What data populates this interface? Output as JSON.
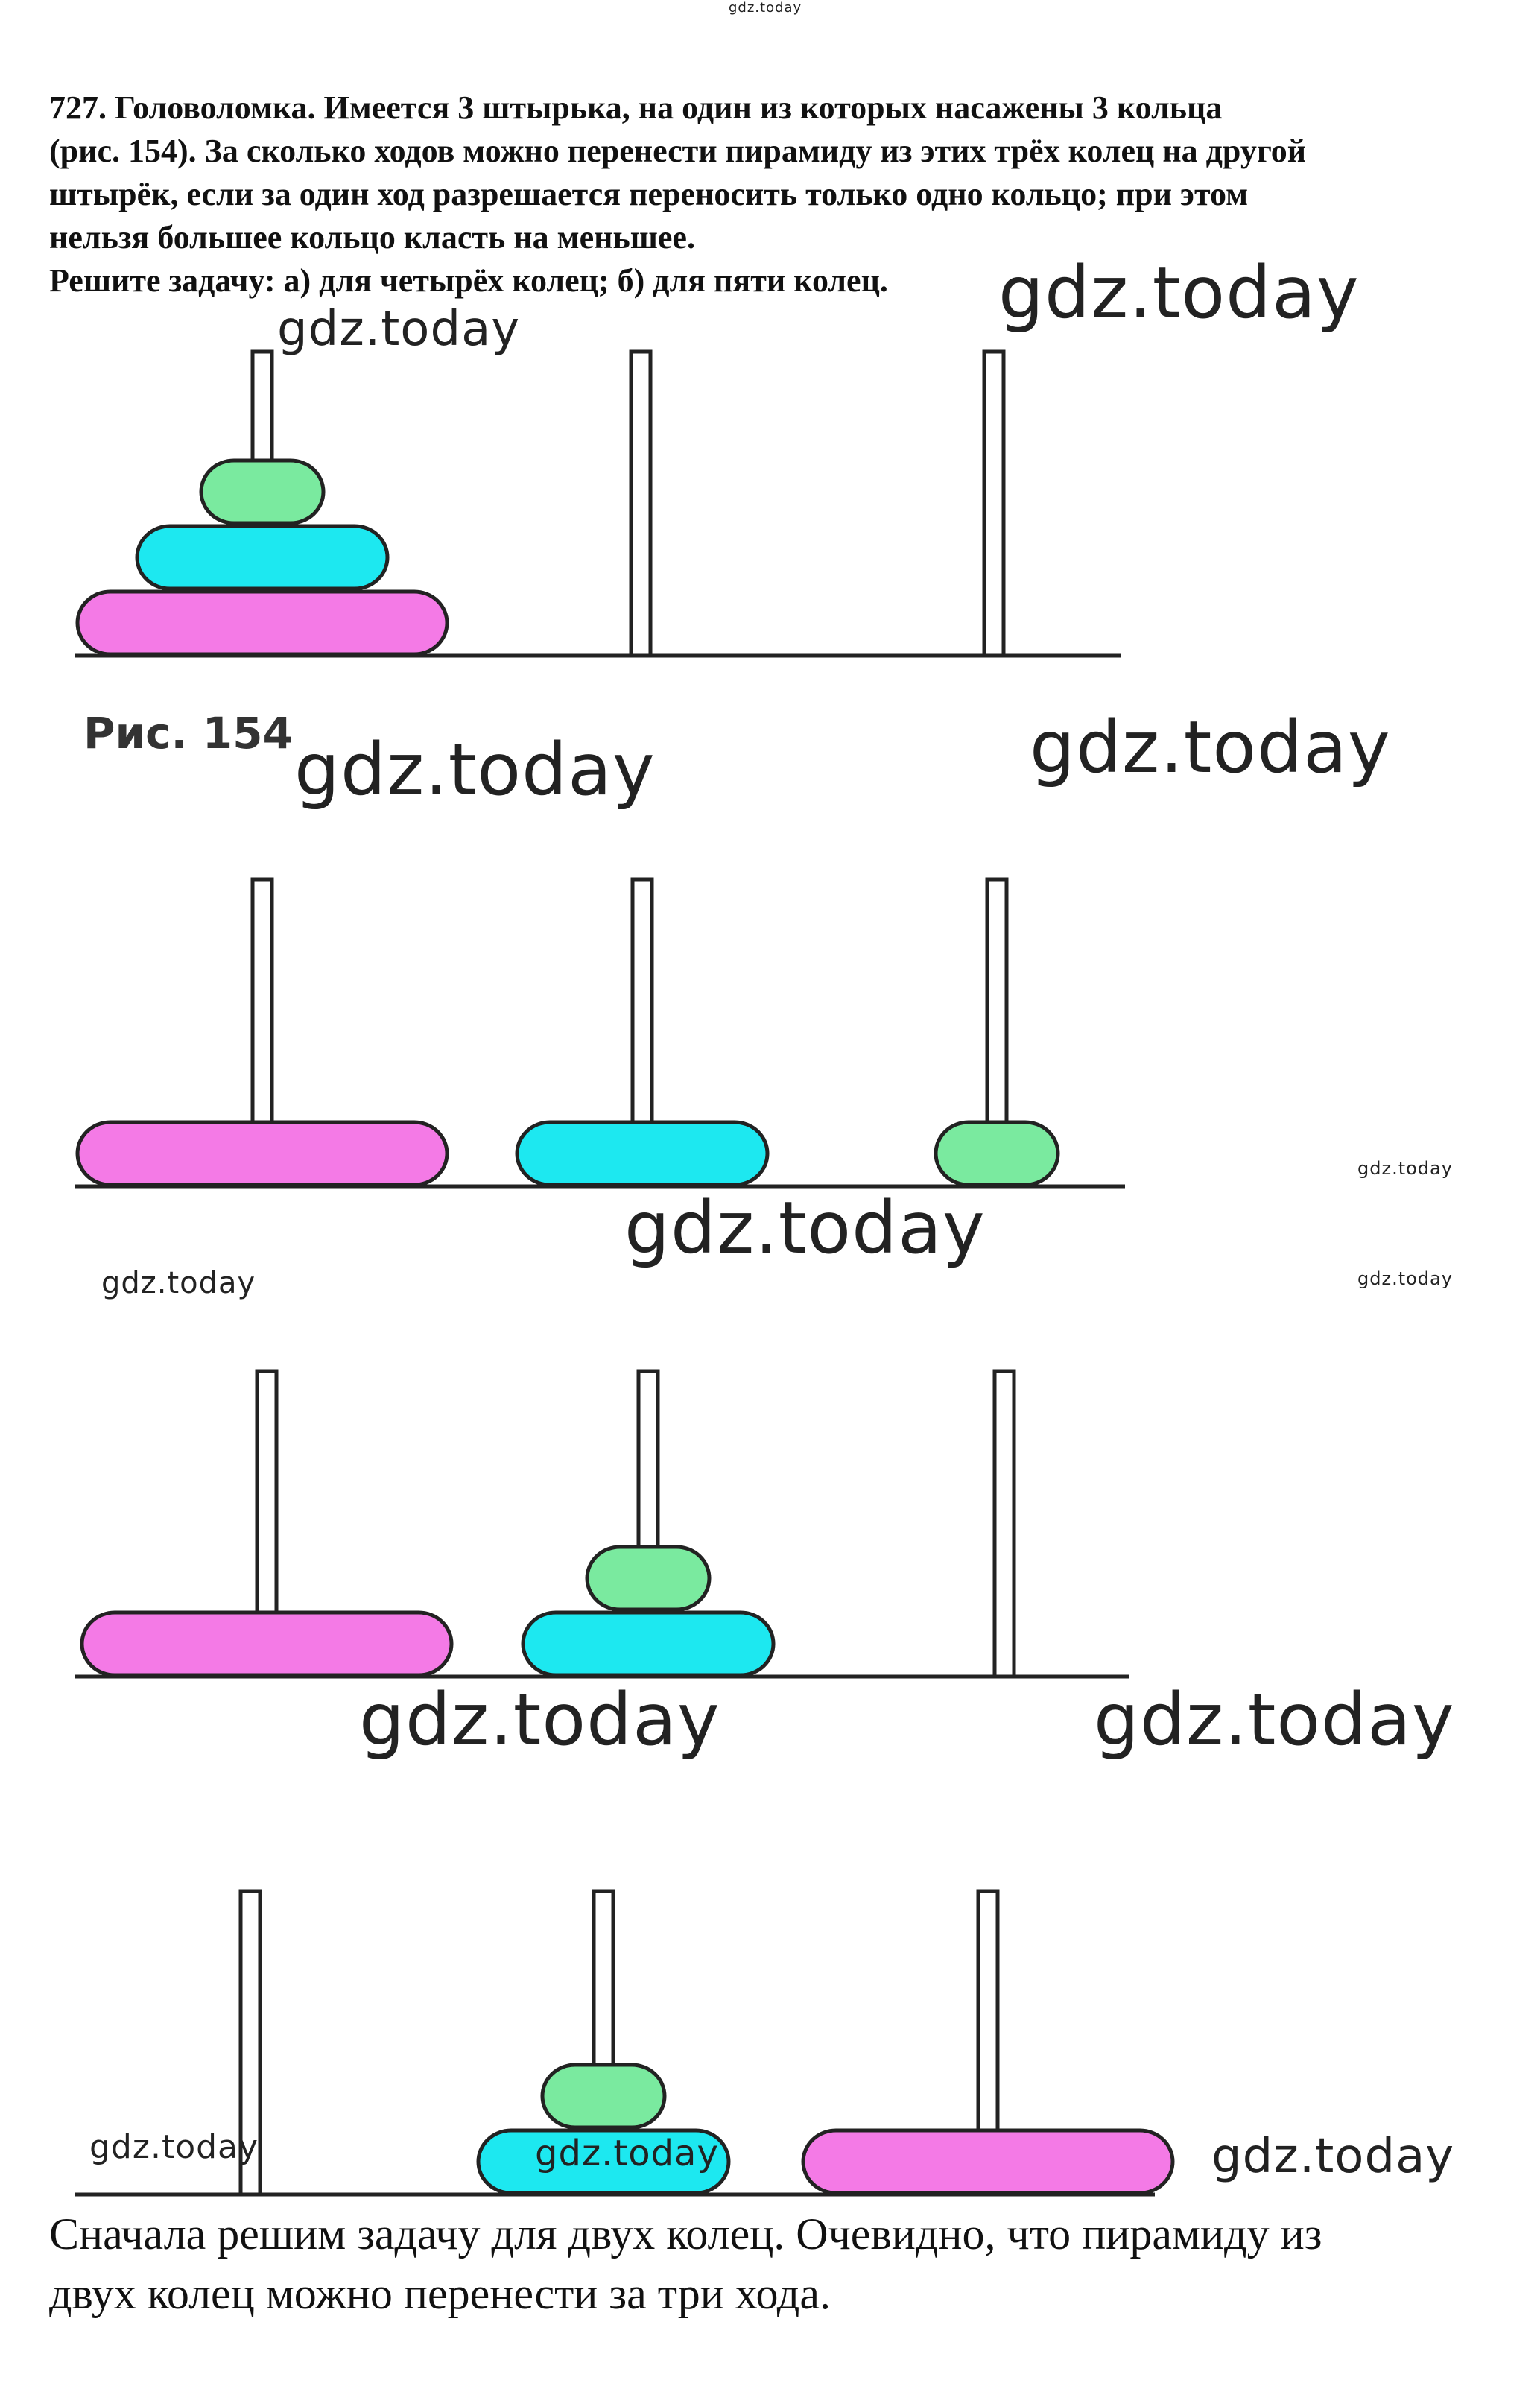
{
  "header_watermark": "gdz.today",
  "task": {
    "lines": [
      "727. Головоломка. Имеется 3 штырька, на один из которых насажены 3 кольца",
      "(рис. 154). За сколько ходов можно перенести пирамиду из этих трёх колец на другой",
      "штырёк, если за один ход разрешается переносить только одно кольцо; при этом",
      "нельзя большее кольцо класть на меньшее.",
      "Решите задачу: а) для четырёх колец; б) для пяти колец."
    ]
  },
  "figure_caption": "Рис. 154",
  "watermark_text": "gdz.today",
  "answer": {
    "lines": [
      "Сначала решим задачу для двух колец. Очевидно, что пирамиду из",
      "двух колец можно перенести за три хода."
    ]
  },
  "colors": {
    "large_ring": "#f47ae6",
    "medium_ring": "#1de8f0",
    "small_ring": "#7aea9f",
    "outline": "#222222"
  },
  "states": [
    {
      "pegs": [
        [
          "large",
          "medium",
          "small"
        ],
        [],
        []
      ]
    },
    {
      "pegs": [
        [
          "large"
        ],
        [
          "medium"
        ],
        [
          "small"
        ]
      ]
    },
    {
      "pegs": [
        [
          "large"
        ],
        [
          "medium",
          "small"
        ],
        []
      ]
    },
    {
      "pegs": [
        [],
        [
          "medium",
          "small"
        ],
        [
          "large"
        ]
      ]
    }
  ]
}
